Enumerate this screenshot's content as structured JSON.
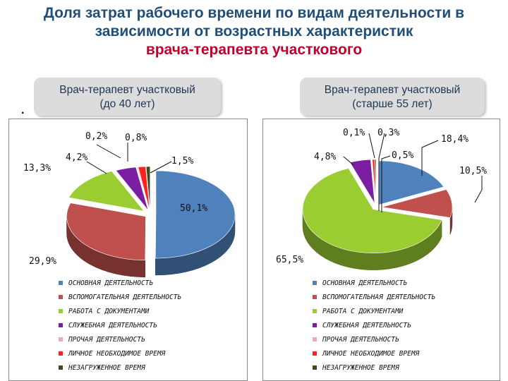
{
  "title": {
    "line1": "Доля затрат рабочего времени по видам деятельности в",
    "line2": "зависимости от возрастных характеристик",
    "line3": "врача-терапевта участкового"
  },
  "bullet": ".",
  "colors": {
    "title_blue": "#1f4e79",
    "title_red": "#c0002a",
    "series": [
      "#4f81bd",
      "#c0504d",
      "#9acd32",
      "#7b1fa2",
      "#f4a6c0",
      "#ff2020",
      "#3b4a1e"
    ]
  },
  "chart_data": [
    {
      "type": "pie",
      "title_line1": "Врач-терапевт участковый",
      "title_line2": "(до 40 лет)",
      "categories": [
        "ОСНОВНАЯ ДЕЯТЕЛЬНОСТЬ",
        "ВСПОМОГАТЕЛЬНАЯ ДЕЯТЕЛЬНОСТЬ",
        "РАБОТА С ДОКУМЕНТАМИ",
        "СЛУЖЕБНАЯ ДЕЯТЕЛЬНОСТЬ",
        "ПРОЧАЯ ДЕЯТЕЛЬНОСТЬ",
        "ЛИЧНОЕ НЕОБХОДИМОЕ ВРЕМЯ",
        "НЕЗАГРУЖЕННОЕ ВРЕМЯ"
      ],
      "values": [
        50.1,
        29.9,
        13.3,
        4.2,
        0.2,
        1.5,
        0.8
      ],
      "labels": [
        "50,1%",
        "29,9%",
        "13,3%",
        "4,2%",
        "0,2%",
        "1,5%",
        "0,8%"
      ],
      "legend_position": "bottom"
    },
    {
      "type": "pie",
      "title_line1": "Врач-терапевт участковый",
      "title_line2": "(старше 55 лет)",
      "categories": [
        "ОСНОВНАЯ ДЕЯТЕЛЬНОСТЬ",
        "ВСПОМОГАТЕЛЬНАЯ ДЕЯТЕЛЬНОСТЬ",
        "РАБОТА С ДОКУМЕНТАМИ",
        "СЛУЖЕБНАЯ ДЕЯТЕЛЬНОСТЬ",
        "ПРОЧАЯ ДЕЯТЕЛЬНОСТЬ",
        "ЛИЧНОЕ НЕОБХОДИМОЕ ВРЕМЯ",
        "НЕЗАГРУЖЕННОЕ ВРЕМЯ"
      ],
      "values": [
        18.4,
        10.5,
        65.5,
        4.8,
        0.1,
        0.5,
        0.3
      ],
      "labels": [
        "18,4%",
        "10,5%",
        "65,5%",
        "4,8%",
        "0,1%",
        "0,5%",
        "0,3%"
      ],
      "legend_position": "bottom"
    }
  ]
}
